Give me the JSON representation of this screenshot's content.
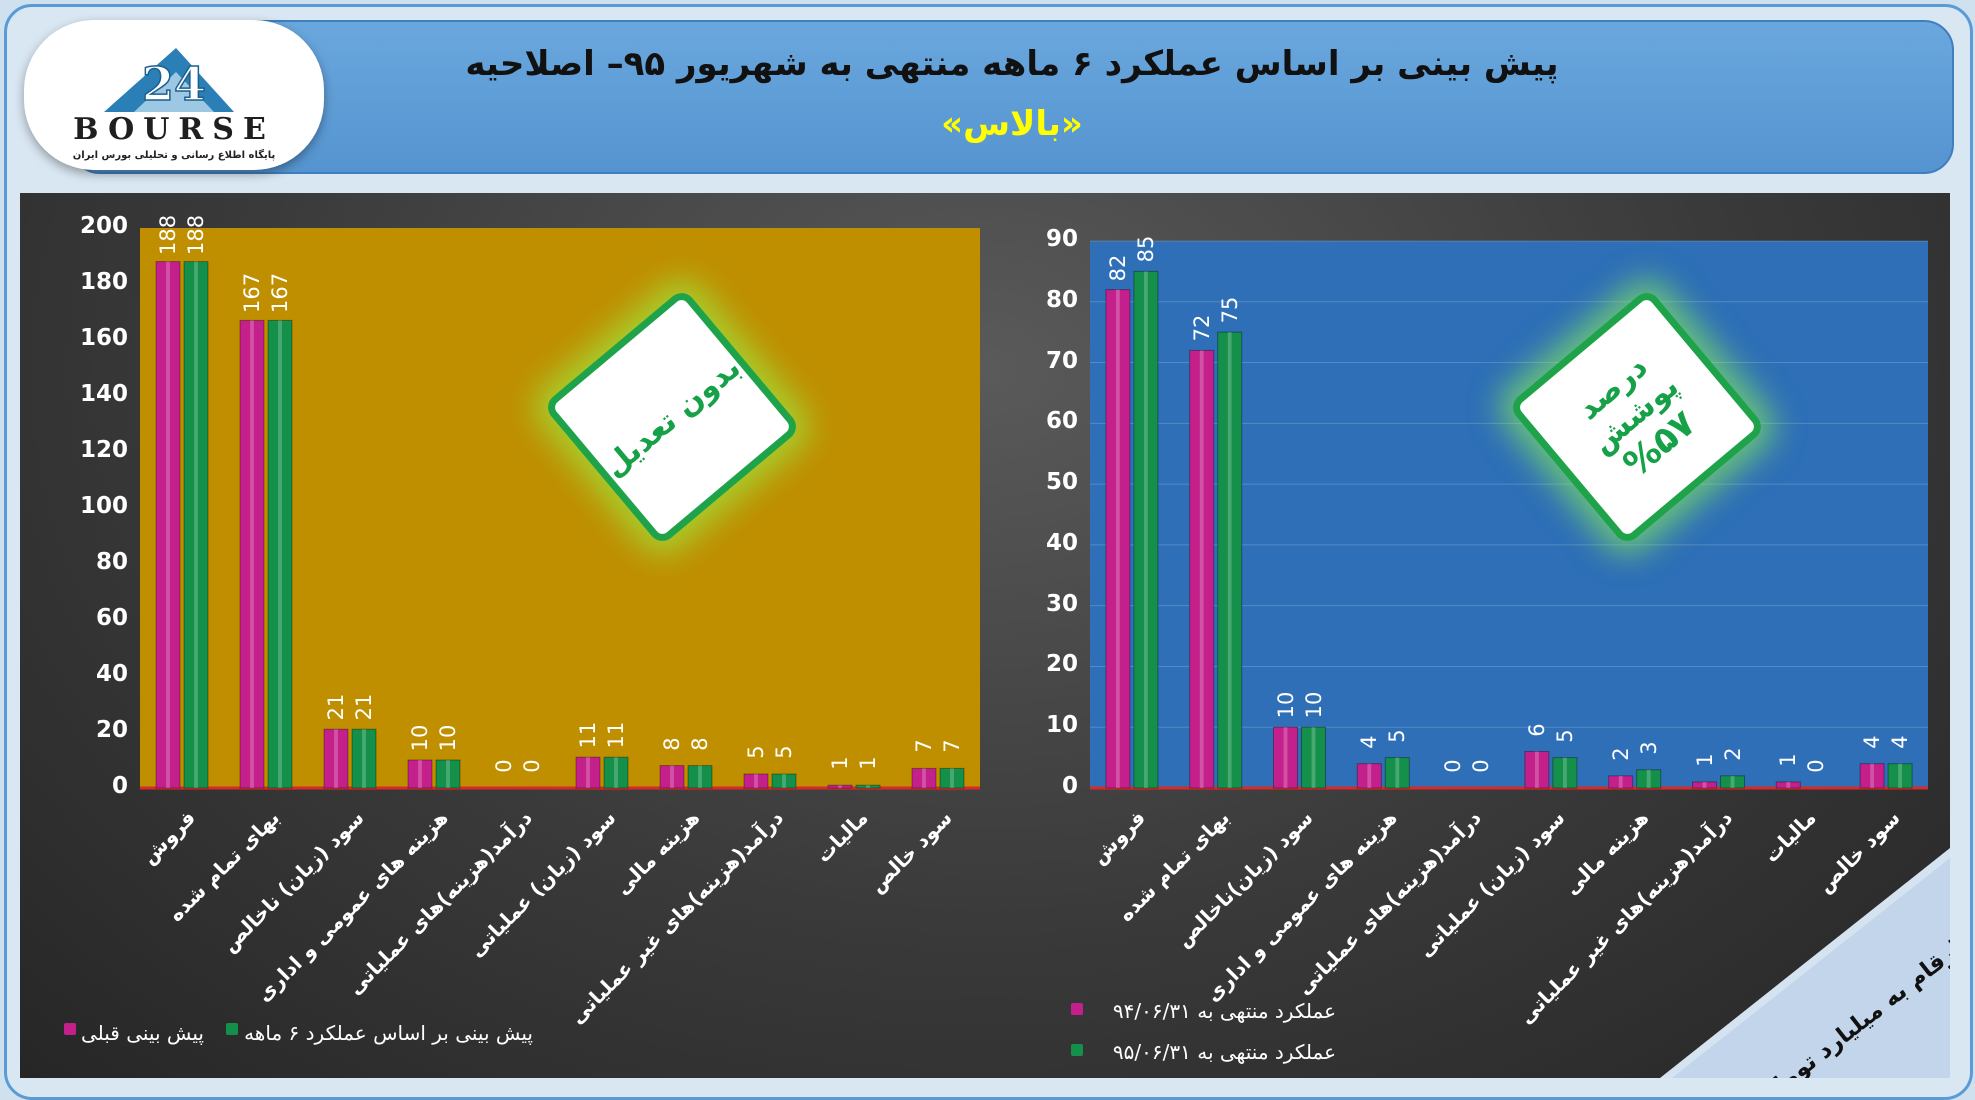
{
  "header": {
    "title": "پیش بینی بر اساس عملکرد ۶ ماهه منتهی به شهریور ۹۵– اصلاحیه",
    "subtitle": "«بالاس»"
  },
  "logo": {
    "word": "BOURSE",
    "number": "24",
    "caption": "پایگاه اطلاع رسانی و تحلیلی بورس ایران"
  },
  "colors": {
    "series1": "#c4208c",
    "series2": "#14904a",
    "left_plot_bg": "#bf8f00",
    "right_plot_bg": "#2e6fb7",
    "badge_green": "#16a047"
  },
  "badges": {
    "left": "بدون تعدیل",
    "right_line1": "درصد پوشش",
    "right_line2": "%۵۷"
  },
  "corner_note": "ارقام به میلیارد تومان",
  "chart_data": [
    {
      "type": "bar",
      "categories": [
        "فروش",
        "بهای تمام شده",
        "سود (زیان) ناخالص",
        "هزینه های عمومی و اداری",
        "درآمد(هزینه)های عملیاتی",
        "سود (زیان) عملیاتی",
        "هزینه مالی",
        "درآمد(هزینه)های غیر عملیاتی",
        "مالیات",
        "سود خالص"
      ],
      "series": [
        {
          "name": "پیش بینی قبلی",
          "values": [
            188,
            167,
            21,
            10,
            0,
            11,
            8,
            5,
            1,
            7
          ]
        },
        {
          "name": "پیش بینی بر اساس عملکرد ۶ ماهه",
          "values": [
            188,
            167,
            21,
            10,
            0,
            11,
            8,
            5,
            1,
            7
          ]
        }
      ],
      "ylim": [
        0,
        200
      ],
      "yticks": [
        "0",
        "20",
        "40",
        "60",
        "80",
        "100",
        "120",
        "140",
        "160",
        "180",
        "200"
      ],
      "legend": "bottom"
    },
    {
      "type": "bar",
      "categories": [
        "فروش",
        "بهای تمام شده",
        "سود (زیان)ناخالص",
        "هزینه های عمومی و اداری",
        "درآمد(هزینه)های عملیاتی",
        "سود (زیان) عملیاتی",
        "هزینه مالی",
        "درآمد(هزینه)های غیر عملیاتی",
        "مالیات",
        "سود خالص"
      ],
      "series": [
        {
          "name": "عملکرد منتهی به ۹۴/۰۶/۳۱",
          "values": [
            82,
            72,
            10,
            4,
            0,
            6,
            2,
            1,
            1,
            4
          ]
        },
        {
          "name": "عملکرد منتهی به ۹۵/۰۶/۳۱",
          "values": [
            85,
            75,
            10,
            5,
            0,
            5,
            3,
            2,
            0,
            4
          ]
        }
      ],
      "ylim": [
        0,
        90
      ],
      "yticks": [
        "0",
        "10",
        "20",
        "30",
        "40",
        "50",
        "60",
        "70",
        "80",
        "90"
      ],
      "legend": "bottom-left"
    }
  ]
}
